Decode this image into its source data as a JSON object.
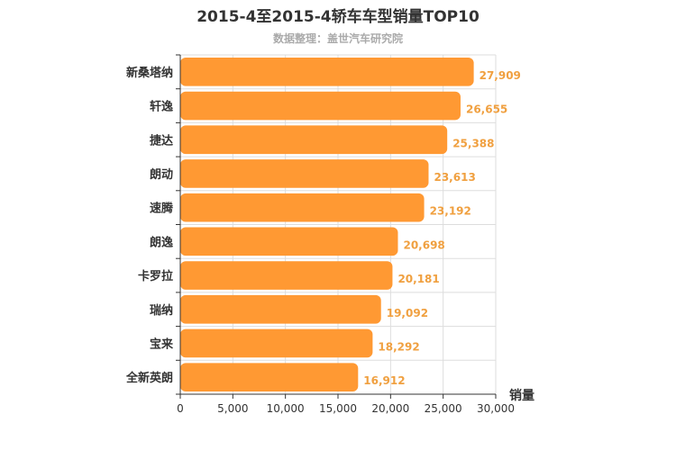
{
  "chart_data": {
    "type": "bar",
    "orientation": "horizontal",
    "title": "2015-4至2015-4轿车车型销量TOP10",
    "subtitle": "数据整理：盖世汽车研究院",
    "xlabel": "销量",
    "ylabel": "",
    "categories": [
      "新桑塔纳",
      "轩逸",
      "捷达",
      "朗动",
      "速腾",
      "朗逸",
      "卡罗拉",
      "瑞纳",
      "宝来",
      "全新英朗"
    ],
    "values": [
      27909,
      26655,
      25388,
      23613,
      23192,
      20698,
      20181,
      19092,
      18292,
      16912
    ],
    "value_labels": [
      "27,909",
      "26,655",
      "25,388",
      "23,613",
      "23,192",
      "20,698",
      "20,181",
      "19,092",
      "18,292",
      "16,912"
    ],
    "xlim": [
      0,
      30000
    ],
    "xticks": [
      0,
      5000,
      10000,
      15000,
      20000,
      25000,
      30000
    ],
    "xtick_labels": [
      "0",
      "5,000",
      "10,000",
      "15,000",
      "20,000",
      "25,000",
      "30,000"
    ],
    "grid": true,
    "legend": "none",
    "colors": {
      "bar": "#FF9933",
      "value_label": "#F0A040",
      "grid": "#dddddd",
      "axis": "#333333"
    }
  }
}
